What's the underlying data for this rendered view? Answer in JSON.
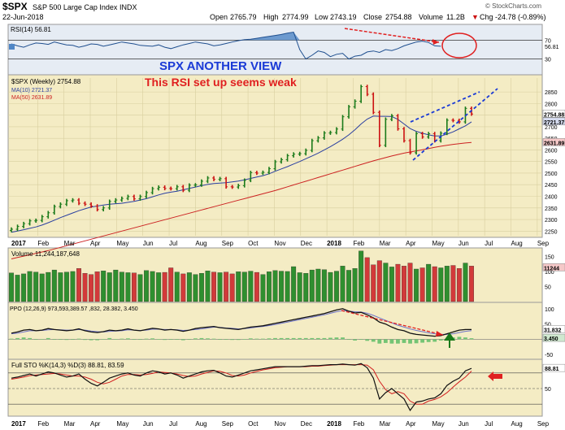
{
  "header": {
    "symbol": "$SPX",
    "name": "S&P 500 Large Cap Index",
    "exchange": "INDX",
    "date": "22-Jun-2018",
    "open_label": "Open",
    "open": "2765.79",
    "high_label": "High",
    "high": "2774.99",
    "low_label": "Low",
    "low": "2743.19",
    "close_label": "Close",
    "close": "2754.88",
    "volume_label": "Volume",
    "volume": "11.2B",
    "chg_label": "Chg",
    "chg": "-24.78 (-0.89%)",
    "chg_arrow": "▼",
    "watermark": "© StockCharts.com"
  },
  "annotations": {
    "title": "SPX ANOTHER VIEW",
    "subtitle": "This RSI set up seems weak"
  },
  "colors": {
    "up_bar": "#1a7a1a",
    "down_bar": "#cc1111",
    "panel_bg": "#f4ecc4",
    "rsi_fill": "#4f86c6",
    "ma10": "#2a3fa0",
    "ma50": "#cc2222",
    "annotation_title": "#1a3ad6",
    "annotation_red": "#e02020"
  },
  "chart_data": [
    {
      "type": "line",
      "panel": "rsi",
      "legend": "RSI(14) 56.81",
      "ylim": [
        0,
        100
      ],
      "overbought": 70,
      "oversold": 30,
      "y_ticks": [
        "70",
        "56.81",
        "30"
      ],
      "last_value": "56.81",
      "values": [
        62,
        58,
        55,
        60,
        64,
        63,
        61,
        66,
        63,
        60,
        59,
        55,
        58,
        62,
        61,
        57,
        60,
        63,
        66,
        64,
        62,
        59,
        58,
        57,
        60,
        55,
        52,
        56,
        60,
        63,
        66,
        64,
        62,
        58,
        60,
        63,
        66,
        69,
        71,
        72,
        74,
        76,
        78,
        80,
        82,
        85,
        87,
        50,
        30,
        38,
        47,
        44,
        35,
        40,
        42,
        30,
        36,
        38,
        45,
        47,
        44,
        50,
        48,
        52,
        58,
        62,
        66,
        68,
        65,
        58,
        57
      ]
    },
    {
      "type": "line",
      "panel": "price",
      "legend": "$SPX (Weekly) 2754.88",
      "ma10_label": "MA(10) 2721.37",
      "ma50_label": "MA(50) 2631.89",
      "ylim": [
        2230,
        2910
      ],
      "y_ticks": [
        "2850",
        "2800",
        "2750",
        "2700",
        "2650",
        "2600",
        "2550",
        "2500",
        "2450",
        "2400",
        "2350",
        "2300",
        "2250"
      ],
      "price_labels": [
        "2754.88",
        "2721.37",
        "2631.89"
      ],
      "x_labels": [
        "2017",
        "Feb",
        "Mar",
        "Apr",
        "May",
        "Jun",
        "Jul",
        "Aug",
        "Sep",
        "Oct",
        "Nov",
        "Dec",
        "2018",
        "Feb",
        "Mar",
        "Apr",
        "May",
        "Jun",
        "Jul",
        "Aug",
        "Sep"
      ],
      "closes": [
        2258,
        2270,
        2282,
        2294,
        2296,
        2312,
        2329,
        2356,
        2366,
        2381,
        2384,
        2370,
        2366,
        2358,
        2343,
        2350,
        2378,
        2384,
        2391,
        2399,
        2389,
        2399,
        2416,
        2433,
        2439,
        2434,
        2433,
        2441,
        2426,
        2448,
        2449,
        2465,
        2479,
        2473,
        2476,
        2441,
        2440,
        2446,
        2469,
        2502,
        2500,
        2503,
        2519,
        2549,
        2558,
        2575,
        2582,
        2584,
        2598,
        2640,
        2652,
        2673,
        2675,
        2690,
        2743,
        2786,
        2810,
        2873,
        2840,
        2762,
        2620,
        2732,
        2747,
        2691,
        2640,
        2588,
        2670,
        2656,
        2670,
        2640,
        2672,
        2728,
        2727,
        2721,
        2779,
        2755
      ],
      "ma10": [
        2245,
        2250,
        2256,
        2262,
        2268,
        2276,
        2286,
        2297,
        2308,
        2318,
        2328,
        2338,
        2346,
        2354,
        2358,
        2362,
        2366,
        2368,
        2370,
        2374,
        2378,
        2384,
        2390,
        2398,
        2406,
        2413,
        2418,
        2422,
        2428,
        2434,
        2440,
        2446,
        2451,
        2455,
        2457,
        2459,
        2462,
        2466,
        2471,
        2477,
        2483,
        2489,
        2497,
        2508,
        2518,
        2528,
        2539,
        2550,
        2562,
        2574,
        2586,
        2600,
        2614,
        2630,
        2646,
        2665,
        2687,
        2712,
        2733,
        2746,
        2745,
        2745,
        2744,
        2732,
        2712,
        2692,
        2680,
        2672,
        2665,
        2660,
        2660,
        2668,
        2678,
        2691,
        2704,
        2721
      ],
      "ma50": [
        2130,
        2136,
        2142,
        2148,
        2154,
        2160,
        2166,
        2173,
        2180,
        2187,
        2194,
        2201,
        2208,
        2215,
        2222,
        2229,
        2236,
        2243,
        2250,
        2257,
        2264,
        2271,
        2278,
        2285,
        2292,
        2299,
        2306,
        2313,
        2320,
        2327,
        2334,
        2341,
        2348,
        2355,
        2362,
        2369,
        2376,
        2383,
        2390,
        2397,
        2404,
        2411,
        2418,
        2425,
        2433,
        2441,
        2449,
        2457,
        2465,
        2473,
        2481,
        2489,
        2497,
        2505,
        2513,
        2521,
        2529,
        2537,
        2545,
        2553,
        2560,
        2567,
        2574,
        2580,
        2586,
        2591,
        2596,
        2601,
        2606,
        2611,
        2616,
        2620,
        2624,
        2627,
        2630,
        2632
      ]
    },
    {
      "type": "bar",
      "panel": "volume",
      "legend": "Volume 11,244,187,648",
      "ylim": [
        0,
        170
      ],
      "y_ticks": [
        "150",
        "100",
        "50"
      ],
      "last_value": "11244",
      "values": [
        95,
        88,
        92,
        100,
        98,
        92,
        97,
        105,
        96,
        98,
        100,
        110,
        94,
        90,
        99,
        102,
        96,
        105,
        98,
        96,
        95,
        90,
        103,
        100,
        96,
        97,
        112,
        98,
        92,
        96,
        90,
        94,
        102,
        98,
        96,
        98,
        92,
        99,
        98,
        101,
        97,
        90,
        99,
        103,
        101,
        100,
        116,
        96,
        94,
        105,
        108,
        106,
        97,
        101,
        118,
        104,
        110,
        168,
        146,
        122,
        136,
        128,
        115,
        124,
        118,
        128,
        108,
        112,
        124,
        116,
        112,
        118,
        120,
        110,
        128,
        118
      ]
    },
    {
      "type": "line",
      "panel": "ppo",
      "legend": "PPO (12,26,9) 973,593,389.57 ,832, 28.382, 3.450",
      "y_ticks": [
        "100",
        "50",
        "0",
        "-50"
      ],
      "price_labels": [
        "31.832",
        "3.450"
      ],
      "ylim": [
        -60,
        110
      ],
      "values": [
        20,
        24,
        30,
        32,
        28,
        30,
        35,
        32,
        30,
        28,
        30,
        34,
        28,
        24,
        22,
        25,
        30,
        28,
        30,
        34,
        30,
        28,
        32,
        36,
        34,
        30,
        32,
        30,
        26,
        30,
        35,
        38,
        40,
        42,
        38,
        36,
        34,
        32,
        36,
        40,
        42,
        44,
        48,
        52,
        56,
        60,
        64,
        68,
        72,
        76,
        80,
        84,
        90,
        96,
        100,
        92,
        86,
        88,
        80,
        70,
        56,
        50,
        40,
        32,
        28,
        20,
        16,
        14,
        12,
        10,
        12,
        18,
        24,
        30,
        32,
        31.8
      ],
      "signal": [
        18,
        20,
        24,
        28,
        28,
        29,
        31,
        32,
        31,
        30,
        30,
        32,
        30,
        27,
        25,
        24,
        26,
        27,
        28,
        31,
        30,
        29,
        30,
        33,
        33,
        32,
        32,
        31,
        29,
        30,
        32,
        34,
        37,
        40,
        39,
        37,
        36,
        34,
        35,
        37,
        40,
        42,
        45,
        48,
        52,
        56,
        60,
        64,
        68,
        72,
        76,
        80,
        85,
        90,
        94,
        92,
        90,
        89,
        85,
        78,
        70,
        62,
        54,
        46,
        40,
        34,
        29,
        25,
        21,
        18,
        16,
        16,
        18,
        22,
        26,
        28.4
      ],
      "histogram": [
        2,
        4,
        6,
        4,
        0,
        1,
        4,
        0,
        -1,
        -2,
        0,
        2,
        -2,
        -3,
        -3,
        1,
        4,
        1,
        2,
        3,
        0,
        -1,
        2,
        3,
        1,
        -2,
        0,
        -1,
        -3,
        0,
        3,
        4,
        3,
        2,
        -1,
        -1,
        -2,
        -2,
        1,
        3,
        2,
        2,
        3,
        4,
        4,
        4,
        4,
        4,
        4,
        4,
        4,
        4,
        5,
        6,
        6,
        0,
        -4,
        -1,
        -5,
        -8,
        -14,
        -12,
        -14,
        -14,
        -12,
        -14,
        -13,
        -11,
        -9,
        -8,
        -4,
        2,
        6,
        8,
        6,
        3.45
      ]
    },
    {
      "type": "line",
      "panel": "stochastic",
      "legend": "Full STO %K(14,3) %D(3) 88.81, 83.59",
      "y_ticks": [
        "88.81",
        "50"
      ],
      "ylim": [
        0,
        100
      ],
      "percent_k": [
        70,
        72,
        75,
        78,
        74,
        78,
        82,
        80,
        76,
        72,
        74,
        78,
        68,
        60,
        55,
        62,
        70,
        74,
        78,
        80,
        76,
        74,
        80,
        84,
        82,
        78,
        80,
        76,
        70,
        74,
        78,
        82,
        84,
        85,
        80,
        74,
        72,
        76,
        80,
        84,
        86,
        88,
        90,
        92,
        92,
        92,
        92,
        92,
        93,
        94,
        94,
        95,
        96,
        96,
        97,
        96,
        95,
        98,
        90,
        70,
        30,
        42,
        50,
        40,
        30,
        8,
        24,
        26,
        30,
        32,
        40,
        56,
        64,
        70,
        84,
        88.81
      ],
      "percent_d": [
        68,
        70,
        72,
        75,
        76,
        77,
        78,
        79,
        78,
        76,
        74,
        74,
        72,
        68,
        62,
        59,
        62,
        68,
        74,
        77,
        77,
        76,
        77,
        79,
        82,
        81,
        80,
        78,
        75,
        73,
        74,
        78,
        81,
        84,
        83,
        80,
        75,
        74,
        76,
        80,
        83,
        86,
        88,
        90,
        91,
        92,
        92,
        92,
        92,
        93,
        93,
        94,
        95,
        96,
        96,
        96,
        96,
        96,
        95,
        86,
        64,
        48,
        40,
        44,
        40,
        26,
        20,
        20,
        26,
        29,
        34,
        42,
        53,
        63,
        72,
        83.59
      ]
    }
  ],
  "x_axis_labels": [
    "2017",
    "Feb",
    "Mar",
    "Apr",
    "May",
    "Jun",
    "Jul",
    "Aug",
    "Sep",
    "Oct",
    "Nov",
    "Dec",
    "2018",
    "Feb",
    "Mar",
    "Apr",
    "May",
    "Jun",
    "Jul",
    "Aug",
    "Sep"
  ]
}
